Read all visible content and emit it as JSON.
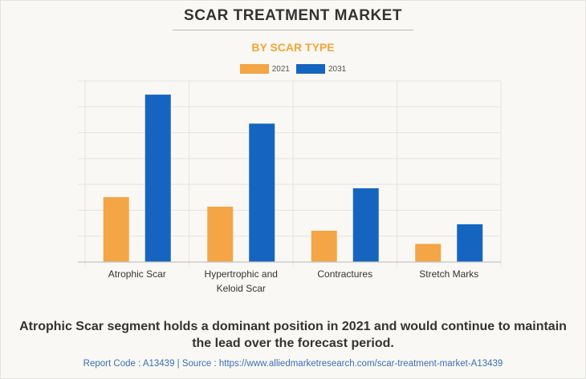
{
  "header": {
    "title": "SCAR TREATMENT MARKET",
    "subtitle": "BY SCAR TYPE"
  },
  "legend": [
    {
      "label": "2021",
      "color": "#f4a545"
    },
    {
      "label": "2031",
      "color": "#1565c0"
    }
  ],
  "chart_data": {
    "type": "bar",
    "title": "SCAR TREATMENT MARKET",
    "subtitle": "BY SCAR TYPE",
    "xlabel": "",
    "ylabel": "",
    "y_unit_note": "No y-axis values shown; values in gridline units (relative)",
    "ylim": [
      0,
      7
    ],
    "grid": true,
    "legend_position": "top-center",
    "categories": [
      "Atrophic Scar",
      "Hypertrophic and Keloid Scar",
      "Contractures",
      "Stretch Marks"
    ],
    "category_lines": [
      [
        "Atrophic Scar"
      ],
      [
        "Hypertrophic and",
        "Keloid Scar"
      ],
      [
        "Contractures"
      ],
      [
        "Stretch Marks"
      ]
    ],
    "series": [
      {
        "name": "2021",
        "color": "#f4a545",
        "values": [
          2.51,
          2.14,
          1.21,
          0.7
        ]
      },
      {
        "name": "2031",
        "color": "#1565c0",
        "values": [
          6.47,
          5.35,
          2.85,
          1.46
        ]
      }
    ]
  },
  "caption": "Atrophic Scar segment holds a dominant position in 2021 and would continue to maintain the lead over the forecast period.",
  "footer": "Report Code : A13439  |  Source : https://www.alliedmarketresearch.com/scar-treatment-market-A13439"
}
